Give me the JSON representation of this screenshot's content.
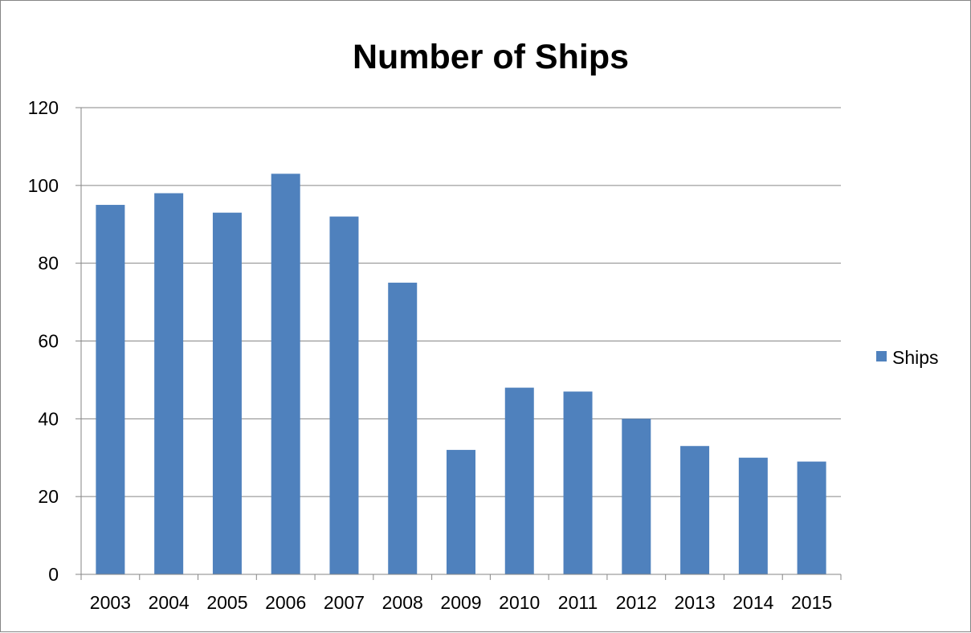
{
  "chart_data": {
    "type": "bar",
    "title": "Number of Ships",
    "xlabel": "",
    "ylabel": "",
    "categories": [
      "2003",
      "2004",
      "2005",
      "2006",
      "2007",
      "2008",
      "2009",
      "2010",
      "2011",
      "2012",
      "2013",
      "2014",
      "2015"
    ],
    "series": [
      {
        "name": "Ships",
        "values": [
          95,
          98,
          93,
          103,
          92,
          75,
          32,
          48,
          47,
          40,
          33,
          30,
          29
        ]
      }
    ],
    "ylim": [
      0,
      120
    ],
    "yticks": [
      0,
      20,
      40,
      60,
      80,
      100,
      120
    ],
    "grid": true,
    "legend_position": "right",
    "colors": {
      "bar": "#4F81BD",
      "grid": "#868686",
      "axis": "#868686",
      "frame": "#868686"
    }
  }
}
